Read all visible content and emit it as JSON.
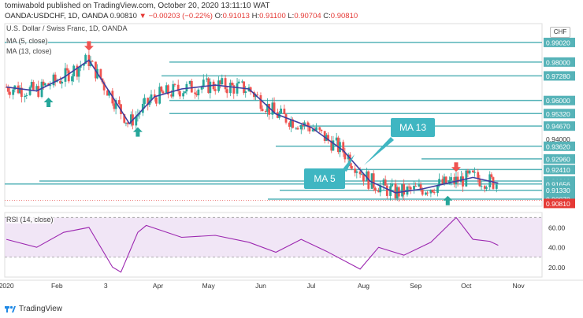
{
  "header": {
    "published": "tomiwabold published on TradingView.com, October 20, 2020 13:11:10 WAT",
    "symbol": "OANDA:USDCHF, 1D, OANDA",
    "last": "0.90810",
    "arrow": "▼",
    "change": "−0.00203 (−0.22%)",
    "O": "0.91013",
    "H": "0.91100",
    "L": "0.90704",
    "C": "0.90810"
  },
  "main_title": "U.S. Dollar / Swiss Franc, 1D, OANDA",
  "ma5_legend": "MA (5, close)",
  "ma13_legend": "MA (13, close)",
  "rsi_legend": "RSI (14, close)",
  "currency_box": "CHF",
  "footer_brand": "TradingView",
  "annotations": {
    "ma13": "MA 13",
    "ma5": "MA 5"
  },
  "colors": {
    "up": "#26a69a",
    "down": "#ef5350",
    "ma13": "#3f3fa0",
    "level": "#56b3b8",
    "rsi": "#9c27b0",
    "rsi_band": "#e8d6f0",
    "badge_bg": "#3fb6c2",
    "last_price": "#e53935"
  },
  "chart_data": [
    {
      "type": "candlestick",
      "title": "U.S. Dollar / Swiss Franc, 1D, OANDA",
      "x_tick_labels": [
        "2020",
        "Feb",
        "3",
        "Apr",
        "May",
        "Jun",
        "Jul",
        "Aug",
        "Sep",
        "Oct",
        "Nov"
      ],
      "y_tick_labels": [
        "0.99020",
        "0.98000",
        "0.97280",
        "0.96000",
        "0.95320",
        "0.94670",
        "0.94000",
        "0.93620",
        "0.92960",
        "0.92410",
        "0.91810",
        "0.91656",
        "0.91330",
        "0.90870",
        "0.90810"
      ],
      "last_price": 0.9081,
      "horizontal_levels": [
        0.9902,
        0.98,
        0.9728,
        0.96,
        0.9532,
        0.9467,
        0.9362,
        0.9296,
        0.9241,
        0.9181,
        0.91656,
        0.9133,
        0.9087
      ],
      "ylim": [
        0.905,
        1.0
      ],
      "series": [
        {
          "name": "MA (13, close)"
        },
        {
          "name": "MA (5, close)"
        }
      ],
      "ma13_points": [
        {
          "x": "2020-01-02",
          "y": 0.967
        },
        {
          "x": "2020-01-20",
          "y": 0.965
        },
        {
          "x": "2020-02-05",
          "y": 0.972
        },
        {
          "x": "2020-02-20",
          "y": 0.981
        },
        {
          "x": "2020-03-05",
          "y": 0.962
        },
        {
          "x": "2020-03-15",
          "y": 0.948
        },
        {
          "x": "2020-03-30",
          "y": 0.962
        },
        {
          "x": "2020-04-15",
          "y": 0.966
        },
        {
          "x": "2020-05-05",
          "y": 0.968
        },
        {
          "x": "2020-05-25",
          "y": 0.966
        },
        {
          "x": "2020-06-10",
          "y": 0.953
        },
        {
          "x": "2020-07-01",
          "y": 0.946
        },
        {
          "x": "2020-07-20",
          "y": 0.934
        },
        {
          "x": "2020-08-05",
          "y": 0.918
        },
        {
          "x": "2020-08-20",
          "y": 0.912
        },
        {
          "x": "2020-09-05",
          "y": 0.914
        },
        {
          "x": "2020-09-20",
          "y": 0.917
        },
        {
          "x": "2020-10-05",
          "y": 0.92
        },
        {
          "x": "2020-10-20",
          "y": 0.917
        }
      ],
      "signals": [
        {
          "type": "buy",
          "x": "2020-01-27"
        },
        {
          "type": "sell",
          "x": "2020-02-20"
        },
        {
          "type": "buy",
          "x": "2020-03-20"
        },
        {
          "type": "sell",
          "x": "2020-09-25"
        },
        {
          "type": "buy",
          "x": "2020-09-20"
        }
      ]
    },
    {
      "type": "line",
      "title": "RSI (14, close)",
      "y_tick_labels": [
        "60.00",
        "40.00",
        "20.00"
      ],
      "ylim": [
        10,
        75
      ],
      "band": [
        30,
        70
      ],
      "points": [
        {
          "x": "2020-01-02",
          "y": 48
        },
        {
          "x": "2020-01-20",
          "y": 40
        },
        {
          "x": "2020-02-05",
          "y": 55
        },
        {
          "x": "2020-02-20",
          "y": 60
        },
        {
          "x": "2020-03-05",
          "y": 20
        },
        {
          "x": "2020-03-10",
          "y": 15
        },
        {
          "x": "2020-03-20",
          "y": 55
        },
        {
          "x": "2020-03-25",
          "y": 62
        },
        {
          "x": "2020-04-15",
          "y": 50
        },
        {
          "x": "2020-05-05",
          "y": 52
        },
        {
          "x": "2020-05-25",
          "y": 45
        },
        {
          "x": "2020-06-10",
          "y": 35
        },
        {
          "x": "2020-06-25",
          "y": 48
        },
        {
          "x": "2020-07-10",
          "y": 36
        },
        {
          "x": "2020-07-30",
          "y": 18
        },
        {
          "x": "2020-08-10",
          "y": 40
        },
        {
          "x": "2020-08-25",
          "y": 32
        },
        {
          "x": "2020-09-10",
          "y": 45
        },
        {
          "x": "2020-09-25",
          "y": 70
        },
        {
          "x": "2020-10-05",
          "y": 48
        },
        {
          "x": "2020-10-15",
          "y": 46
        },
        {
          "x": "2020-10-20",
          "y": 42
        }
      ]
    }
  ]
}
